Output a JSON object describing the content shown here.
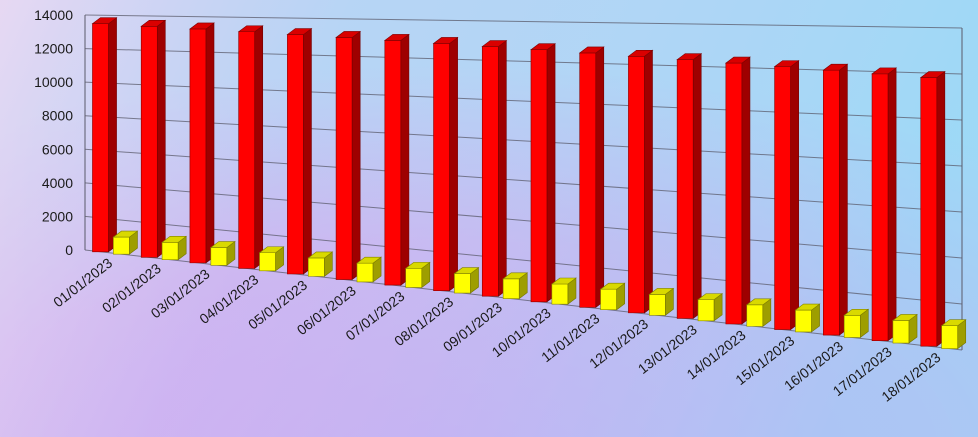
{
  "chart_data": {
    "type": "bar",
    "title": "",
    "xlabel": "",
    "ylabel": "",
    "ylim": [
      0,
      14000
    ],
    "y_ticks": [
      "0",
      "2000",
      "4000",
      "6000",
      "8000",
      "10000",
      "12000",
      "14000"
    ],
    "grid": true,
    "legend": "none",
    "style": "3d-perspective",
    "categories": [
      "01/01/2023",
      "02/01/2023",
      "03/01/2023",
      "04/01/2023",
      "05/01/2023",
      "06/01/2023",
      "07/01/2023",
      "08/01/2023",
      "09/01/2023",
      "10/01/2023",
      "11/01/2023",
      "12/01/2023",
      "13/01/2023",
      "14/01/2023",
      "15/01/2023",
      "16/01/2023",
      "17/01/2023",
      "18/01/2023"
    ],
    "series": [
      {
        "color": "#ff0000",
        "values": [
          13500,
          13400,
          13300,
          13200,
          13100,
          13000,
          12900,
          12800,
          12700,
          12600,
          12500,
          12400,
          12300,
          12200,
          12100,
          12000,
          11900,
          11800
        ]
      },
      {
        "color": "#ffff00",
        "values": [
          1000,
          1000,
          1000,
          1000,
          1000,
          1000,
          1000,
          1000,
          1000,
          1000,
          1000,
          1000,
          1000,
          1000,
          1000,
          1000,
          1000,
          1000
        ]
      }
    ]
  }
}
